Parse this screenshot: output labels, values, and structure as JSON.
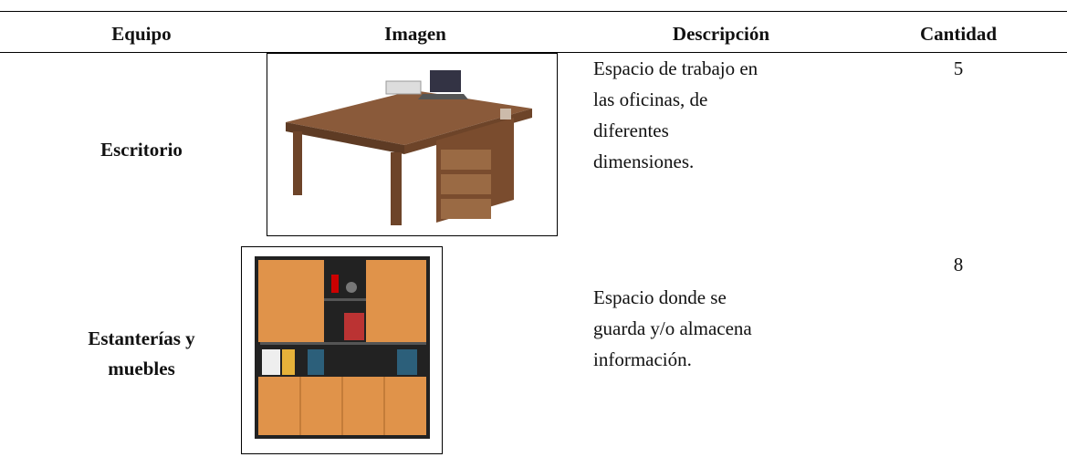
{
  "table": {
    "header": [
      "Equipo",
      "Imagen",
      "Descripción",
      "Cantidad"
    ],
    "rows": [
      {
        "equipo": [
          "Escritorio"
        ],
        "descripcion": [
          "Espacio de trabajo en",
          "las oficinas, de",
          "diferentes",
          "dimensiones."
        ],
        "cantidad": 5
      },
      {
        "equipo": [
          "Estanterías y",
          "muebles"
        ],
        "descripcion": [
          "Espacio donde se",
          "guarda y/o almacena",
          "información."
        ],
        "cantidad": 8
      }
    ]
  }
}
